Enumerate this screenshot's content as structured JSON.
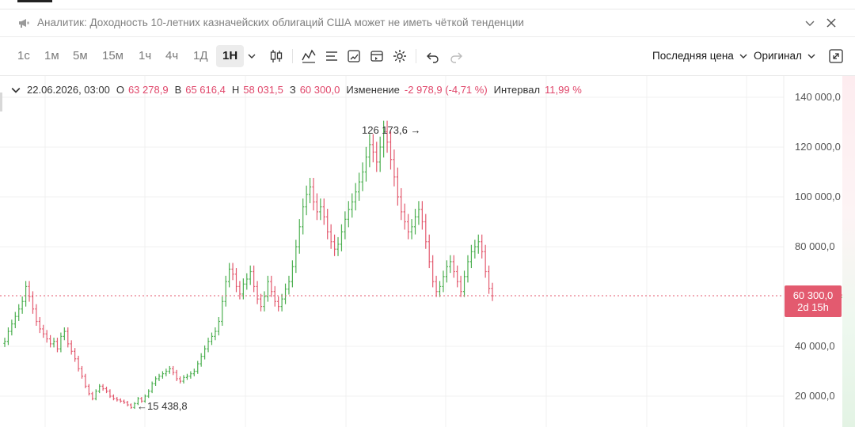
{
  "news": {
    "text": "Аналитик: Доходность 10-летних казначейских облигаций США может не иметь чёткой тенденции"
  },
  "toolbar": {
    "timeframes": [
      "1с",
      "1м",
      "5м",
      "15м",
      "1ч",
      "4ч",
      "1Д",
      "1Н"
    ],
    "active_timeframe": "1Н",
    "price_type": "Последняя цена",
    "scale_mode": "Оригинал"
  },
  "legend": {
    "date": "22.06.2026, 03:00",
    "open_label": "О",
    "open_value": "63 278,9",
    "high_label": "В",
    "high_value": "65 616,4",
    "low_label": "Н",
    "low_value": "58 031,5",
    "close_label": "З",
    "close_value": "60 300,0",
    "change_label": "Изменение",
    "change_value": "-2 978,9 (-4,71 %)",
    "interval_label": "Интервал",
    "interval_value": "11,99 %"
  },
  "price_tag": {
    "price": "60 300,0",
    "countdown": "2d 15h"
  },
  "annotations": {
    "high": "126 173,6",
    "low": "15 438,8"
  },
  "colors": {
    "up": "#4caf50",
    "down": "#e35a6f",
    "accent_text": "#e0466a"
  },
  "chart_data": {
    "type": "line",
    "y_tick_labels": [
      "140 000,0",
      "120 000,0",
      "100 000,0",
      "80 000,0",
      "40 000,0",
      "20 000,0"
    ],
    "y_ticks": [
      140000,
      120000,
      100000,
      80000,
      40000,
      20000
    ],
    "ylim": [
      12000,
      144000
    ],
    "current_price": 60300,
    "max_annotation": 126173.6,
    "min_annotation": 15438.8,
    "grid": true,
    "closes": [
      42000,
      46000,
      49000,
      52000,
      55000,
      58000,
      64000,
      60000,
      55000,
      50000,
      47000,
      45000,
      43000,
      41000,
      42000,
      39000,
      44000,
      46000,
      41000,
      38000,
      35000,
      31000,
      28000,
      24000,
      21000,
      19000,
      22000,
      24000,
      23000,
      22000,
      20000,
      19000,
      18500,
      18000,
      17500,
      16500,
      15438.8,
      17000,
      19000,
      18000,
      20000,
      22000,
      25000,
      27000,
      28000,
      29000,
      30000,
      31000,
      29500,
      27000,
      26000,
      27500,
      28000,
      29000,
      30000,
      33000,
      36000,
      39000,
      42000,
      44000,
      46000,
      50000,
      58000,
      66000,
      71000,
      69000,
      64000,
      61000,
      65000,
      67000,
      70000,
      64000,
      59000,
      56000,
      60000,
      66000,
      62000,
      58000,
      56000,
      59000,
      63000,
      66000,
      72000,
      80000,
      88000,
      96000,
      101000,
      104000,
      98000,
      94000,
      96000,
      92000,
      86000,
      82000,
      79000,
      81000,
      86000,
      91000,
      95000,
      98000,
      102000,
      106000,
      110000,
      116000,
      121000,
      118000,
      114000,
      120000,
      126173.6,
      122000,
      115000,
      108000,
      100000,
      94000,
      90000,
      86000,
      88000,
      92000,
      95000,
      90000,
      82000,
      74000,
      66000,
      62000,
      64000,
      68000,
      72000,
      74000,
      70000,
      66000,
      62000,
      68000,
      74000,
      78000,
      80000,
      82000,
      78000,
      70000,
      63278.9,
      60300
    ]
  }
}
